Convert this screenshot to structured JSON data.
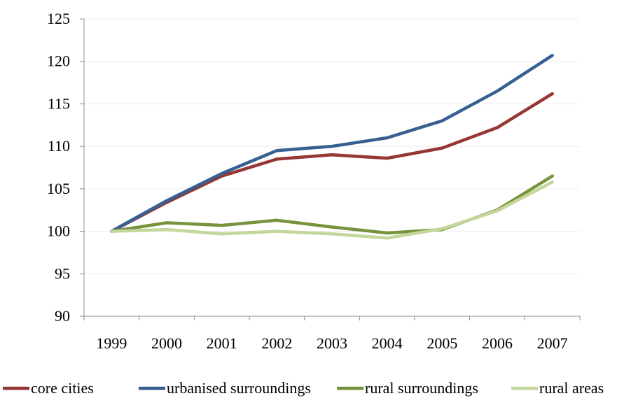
{
  "chart_data": {
    "type": "line",
    "title": "",
    "xlabel": "",
    "ylabel": "",
    "x": [
      "1999",
      "2000",
      "2001",
      "2002",
      "2003",
      "2004",
      "2005",
      "2006",
      "2007"
    ],
    "ylim": [
      90,
      125
    ],
    "yticks": [
      90,
      95,
      100,
      105,
      110,
      115,
      120,
      125
    ],
    "grid": "horizontal",
    "legend_position": "bottom",
    "series": [
      {
        "name": "core cities",
        "color": "#953735",
        "values": [
          100,
          103.4,
          106.5,
          108.5,
          109.0,
          108.6,
          109.8,
          112.2,
          116.2
        ]
      },
      {
        "name": "urbanised surroundings",
        "color": "#376092",
        "values": [
          100,
          103.6,
          106.8,
          109.5,
          110.0,
          111.0,
          113.0,
          116.5,
          120.7
        ]
      },
      {
        "name": "rural surroundings",
        "color": "#77933c",
        "values": [
          100,
          101.0,
          100.7,
          101.3,
          100.5,
          99.8,
          100.2,
          102.5,
          106.5
        ]
      },
      {
        "name": "rural areas",
        "color": "#c3d69b",
        "values": [
          100,
          100.2,
          99.7,
          100.0,
          99.7,
          99.2,
          100.3,
          102.4,
          105.8
        ]
      }
    ]
  }
}
